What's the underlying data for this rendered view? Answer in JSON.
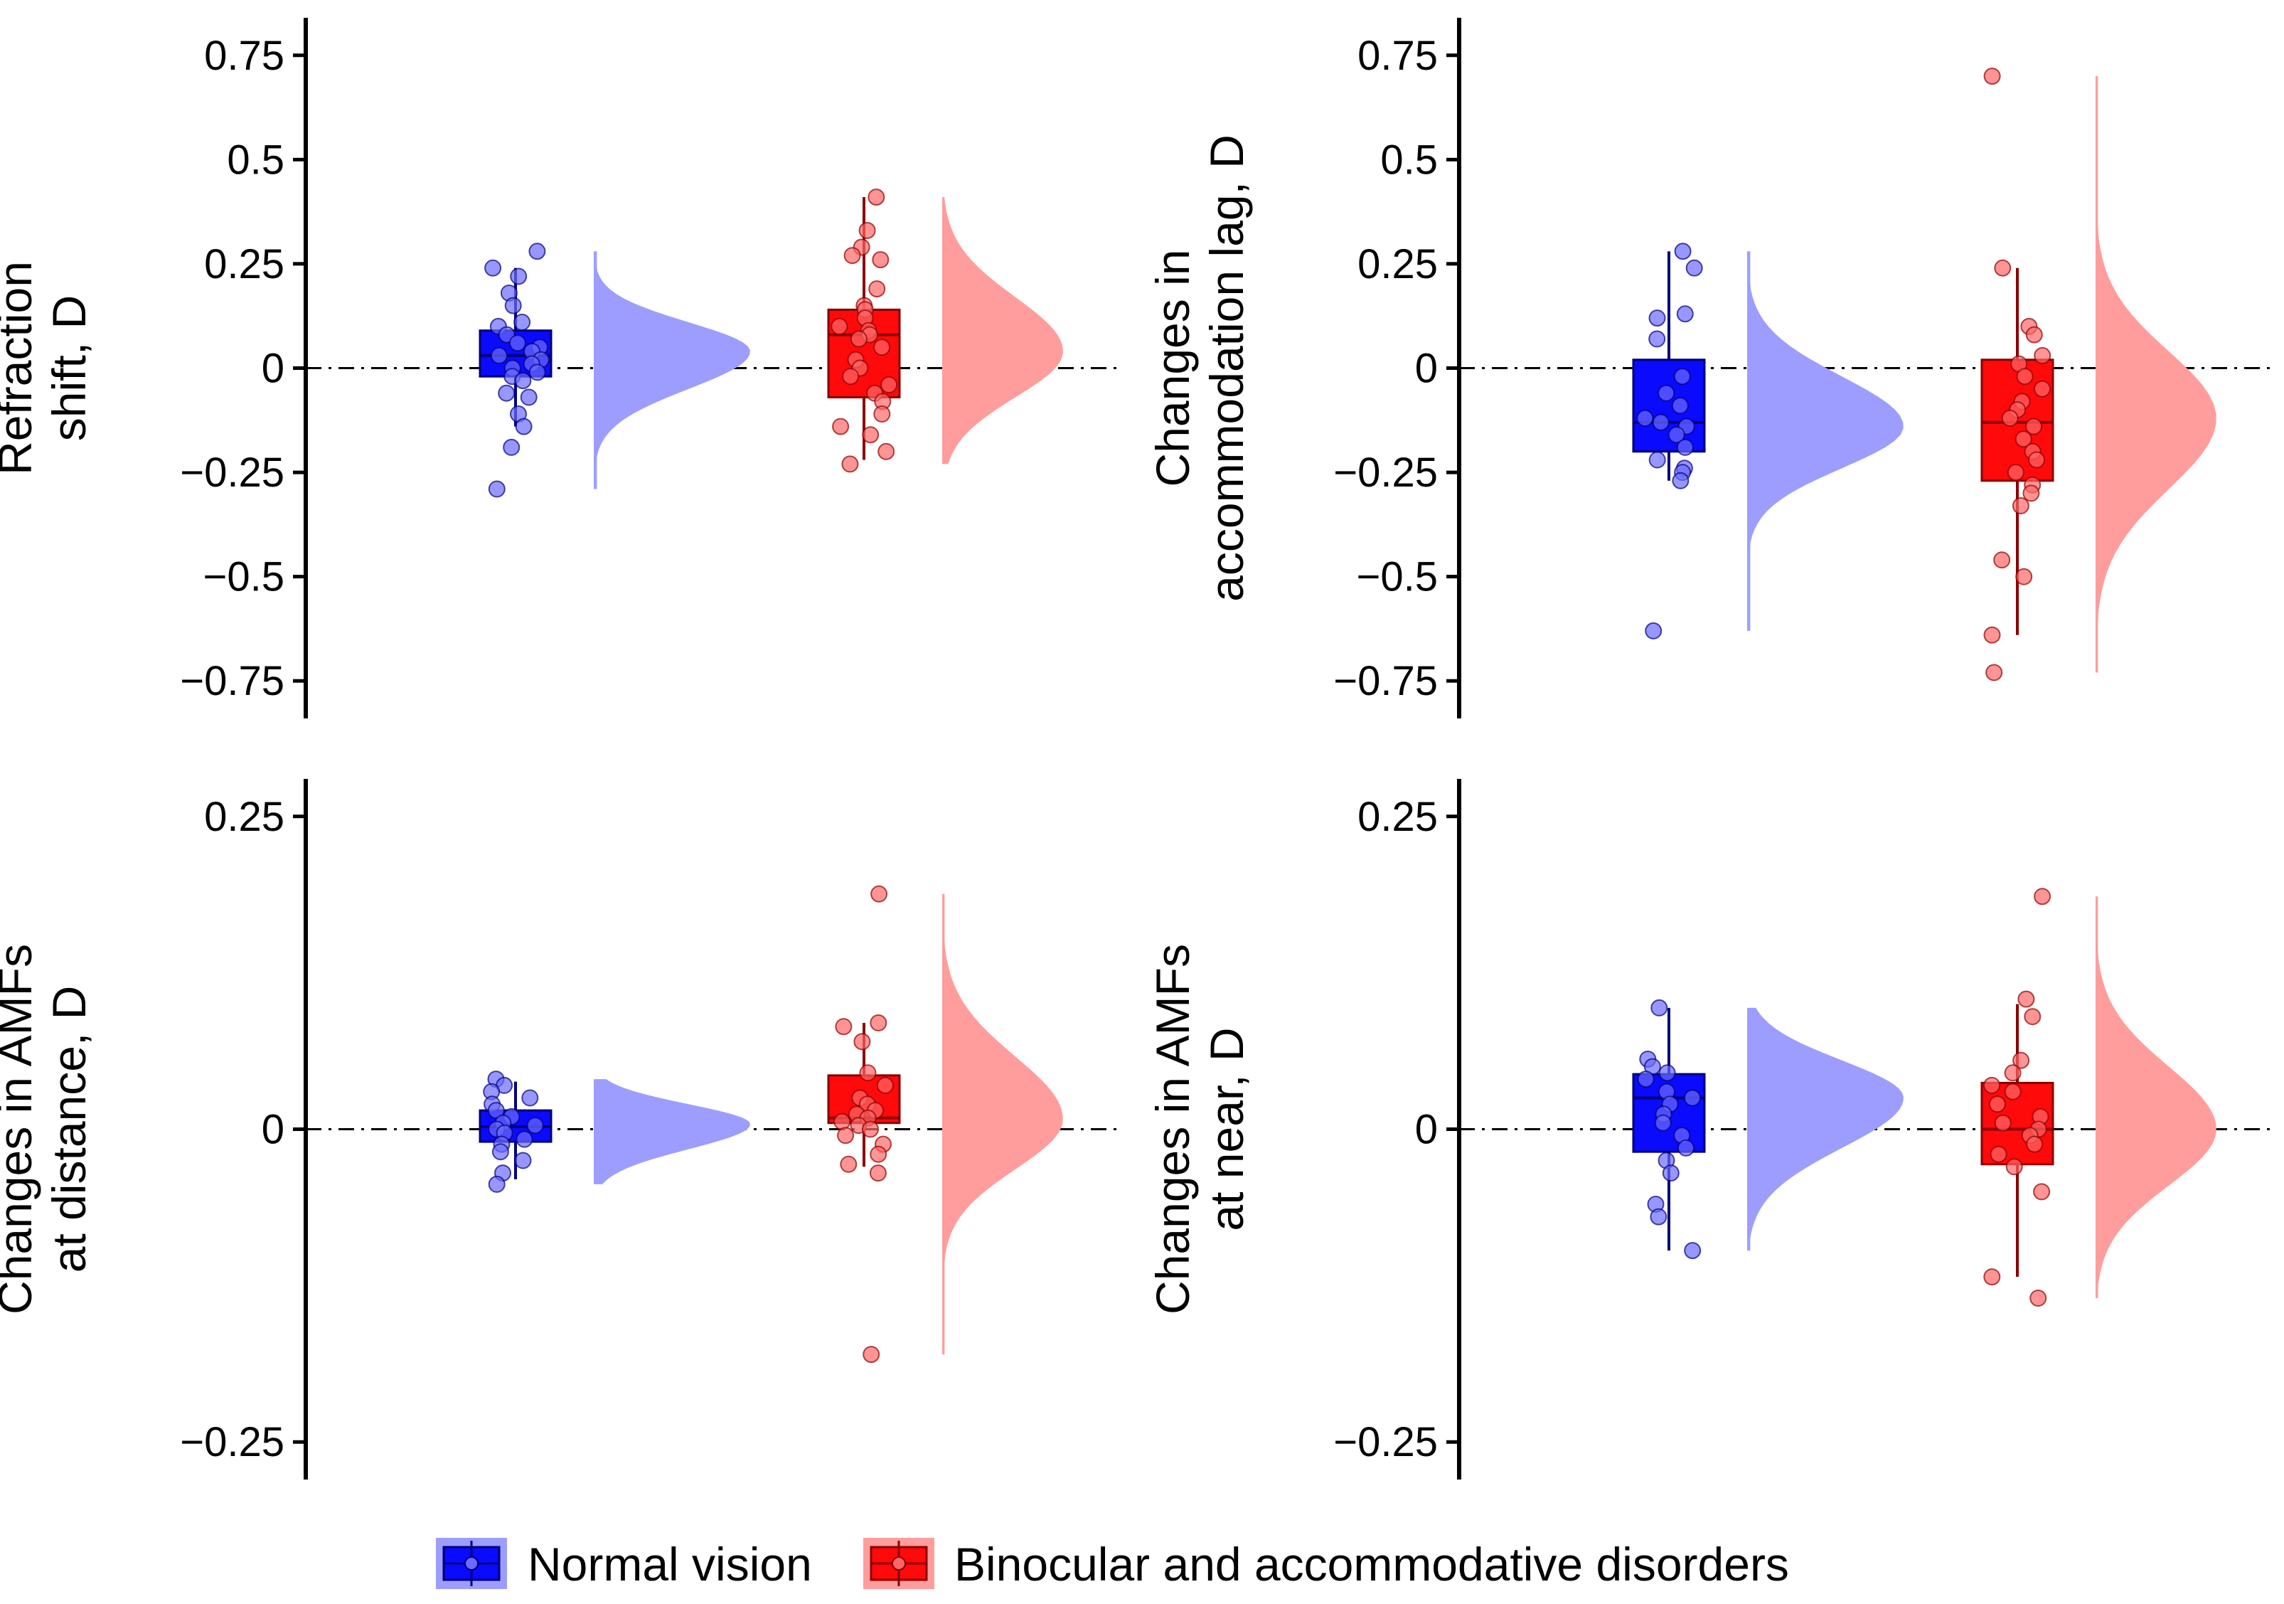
{
  "chart_data": [
    {
      "type": "raincloud",
      "ylabel": [
        "Refraction",
        "shift, D"
      ],
      "yticks": [
        0.75,
        0.5,
        0.25,
        0,
        -0.25,
        -0.5,
        -0.75
      ],
      "ytick_labels": [
        "0.75",
        "0.5",
        "0.25",
        "0",
        "−0.25",
        "−0.5",
        "−0.75"
      ],
      "ylim": [
        -0.84,
        0.84
      ],
      "reference_line": 0,
      "series": [
        {
          "name": "Normal vision",
          "box": {
            "min": -0.14,
            "q1": -0.02,
            "median": 0.03,
            "q3": 0.09,
            "max": 0.24
          },
          "points": [
            0.28,
            0.24,
            0.22,
            0.18,
            0.15,
            0.11,
            0.1,
            0.08,
            0.06,
            0.05,
            0.04,
            0.03,
            0.02,
            0.01,
            0.0,
            -0.01,
            -0.02,
            -0.03,
            -0.06,
            -0.07,
            -0.11,
            -0.14,
            -0.19,
            -0.29
          ],
          "density": {
            "min": -0.29,
            "max": 0.28,
            "peak": 0.04,
            "sd_low": 0.09,
            "sd_high": 0.07
          }
        },
        {
          "name": "Binocular and accommodative disorders",
          "box": {
            "min": -0.22,
            "q1": -0.07,
            "median": 0.08,
            "q3": 0.14,
            "max": 0.41
          },
          "points": [
            0.41,
            0.33,
            0.29,
            0.27,
            0.26,
            0.19,
            0.15,
            0.14,
            0.12,
            0.1,
            0.09,
            0.08,
            0.07,
            0.05,
            0.02,
            0.0,
            -0.02,
            -0.04,
            -0.06,
            -0.08,
            -0.11,
            -0.14,
            -0.16,
            -0.2,
            -0.23
          ],
          "density": {
            "min": -0.23,
            "max": 0.41,
            "peak": 0.04,
            "sd_low": 0.11,
            "sd_high": 0.13
          }
        }
      ]
    },
    {
      "type": "raincloud",
      "ylabel": [
        "Changes in",
        "accommodation lag, D"
      ],
      "yticks": [
        0.75,
        0.5,
        0.25,
        0,
        -0.25,
        -0.5,
        -0.75
      ],
      "ytick_labels": [
        "0.75",
        "0.5",
        "0.25",
        "0",
        "−0.25",
        "−0.5",
        "−0.75"
      ],
      "ylim": [
        -0.84,
        0.84
      ],
      "reference_line": 0,
      "series": [
        {
          "name": "Normal vision",
          "box": {
            "min": -0.27,
            "q1": -0.2,
            "median": -0.13,
            "q3": 0.02,
            "max": 0.28
          },
          "points": [
            0.28,
            0.24,
            0.13,
            0.12,
            0.07,
            -0.02,
            -0.06,
            -0.09,
            -0.12,
            -0.13,
            -0.14,
            -0.16,
            -0.19,
            -0.22,
            -0.24,
            -0.25,
            -0.27,
            -0.63
          ],
          "density": {
            "min": -0.63,
            "max": 0.28,
            "peak": -0.14,
            "sd_low": 0.1,
            "sd_high": 0.12
          }
        },
        {
          "name": "Binocular and accommodative disorders",
          "box": {
            "min": -0.64,
            "q1": -0.27,
            "median": -0.13,
            "q3": 0.02,
            "max": 0.24
          },
          "points": [
            0.7,
            0.24,
            0.1,
            0.08,
            0.03,
            0.01,
            -0.02,
            -0.05,
            -0.08,
            -0.1,
            -0.12,
            -0.14,
            -0.17,
            -0.2,
            -0.22,
            -0.25,
            -0.28,
            -0.3,
            -0.33,
            -0.46,
            -0.5,
            -0.64,
            -0.73
          ],
          "density": {
            "min": -0.73,
            "max": 0.7,
            "peak": -0.12,
            "sd_low": 0.17,
            "sd_high": 0.16
          }
        }
      ]
    },
    {
      "type": "raincloud",
      "ylabel": [
        "Changes in AMFs",
        "at distance, D"
      ],
      "yticks": [
        0.25,
        0,
        -0.25
      ],
      "ytick_labels": [
        "0.25",
        "0",
        "−0.25"
      ],
      "ylim": [
        -0.28,
        0.28
      ],
      "reference_line": 0,
      "series": [
        {
          "name": "Normal vision",
          "box": {
            "min": -0.04,
            "q1": -0.01,
            "median": 0.002,
            "q3": 0.015,
            "max": 0.038
          },
          "points": [
            0.04,
            0.035,
            0.03,
            0.025,
            0.02,
            0.015,
            0.01,
            0.005,
            0.003,
            0.0,
            -0.003,
            -0.008,
            -0.012,
            -0.018,
            -0.025,
            -0.035,
            -0.044
          ],
          "density": {
            "min": -0.044,
            "max": 0.04,
            "peak": 0.004,
            "sd_low": 0.02,
            "sd_high": 0.016
          }
        },
        {
          "name": "Binocular and accommodative disorders",
          "box": {
            "min": -0.03,
            "q1": 0.005,
            "median": 0.009,
            "q3": 0.043,
            "max": 0.085
          },
          "points": [
            0.188,
            0.085,
            0.082,
            0.07,
            0.045,
            0.035,
            0.025,
            0.02,
            0.015,
            0.012,
            0.009,
            0.006,
            0.003,
            0.0,
            -0.005,
            -0.012,
            -0.02,
            -0.028,
            -0.035,
            -0.18
          ],
          "density": {
            "min": -0.18,
            "max": 0.188,
            "peak": 0.008,
            "sd_low": 0.04,
            "sd_high": 0.05
          }
        }
      ]
    },
    {
      "type": "raincloud",
      "ylabel": [
        "Changes in AMFs",
        "at near, D"
      ],
      "yticks": [
        0.25,
        0,
        -0.25
      ],
      "ytick_labels": [
        "0.25",
        "0",
        "−0.25"
      ],
      "ylim": [
        -0.28,
        0.28
      ],
      "reference_line": 0,
      "series": [
        {
          "name": "Normal vision",
          "box": {
            "min": -0.097,
            "q1": -0.018,
            "median": 0.025,
            "q3": 0.044,
            "max": 0.097
          },
          "points": [
            0.097,
            0.056,
            0.05,
            0.045,
            0.04,
            0.03,
            0.025,
            0.02,
            0.012,
            0.005,
            -0.005,
            -0.015,
            -0.025,
            -0.035,
            -0.06,
            -0.07,
            -0.097
          ],
          "density": {
            "min": -0.097,
            "max": 0.097,
            "peak": 0.025,
            "sd_low": 0.04,
            "sd_high": 0.03
          }
        },
        {
          "name": "Binocular and accommodative disorders",
          "box": {
            "min": -0.118,
            "q1": -0.028,
            "median": 0.0,
            "q3": 0.037,
            "max": 0.1
          },
          "points": [
            0.186,
            0.104,
            0.09,
            0.055,
            0.045,
            0.035,
            0.03,
            0.02,
            0.01,
            0.005,
            0.0,
            -0.005,
            -0.012,
            -0.02,
            -0.03,
            -0.05,
            -0.118,
            -0.135
          ],
          "density": {
            "min": -0.135,
            "max": 0.186,
            "peak": 0.0,
            "sd_low": 0.045,
            "sd_high": 0.05
          }
        }
      ]
    }
  ],
  "legend": {
    "position": "bottom-center",
    "items": [
      {
        "label": "Normal vision",
        "color": "#0a0aff",
        "line_color": "#000080"
      },
      {
        "label": "Binocular and accommodative disorders",
        "color": "#ff0a0a",
        "line_color": "#8b0000"
      }
    ]
  },
  "colors": {
    "nv_box": "#0a0aff",
    "nv_line": "#00007a",
    "nv_point": "#6b6bff",
    "nv_cloud": "#9d9dff",
    "bad_box": "#ff0a0a",
    "bad_line": "#8b0000",
    "bad_point": "#ff6666",
    "bad_cloud": "#ff9d9d"
  }
}
